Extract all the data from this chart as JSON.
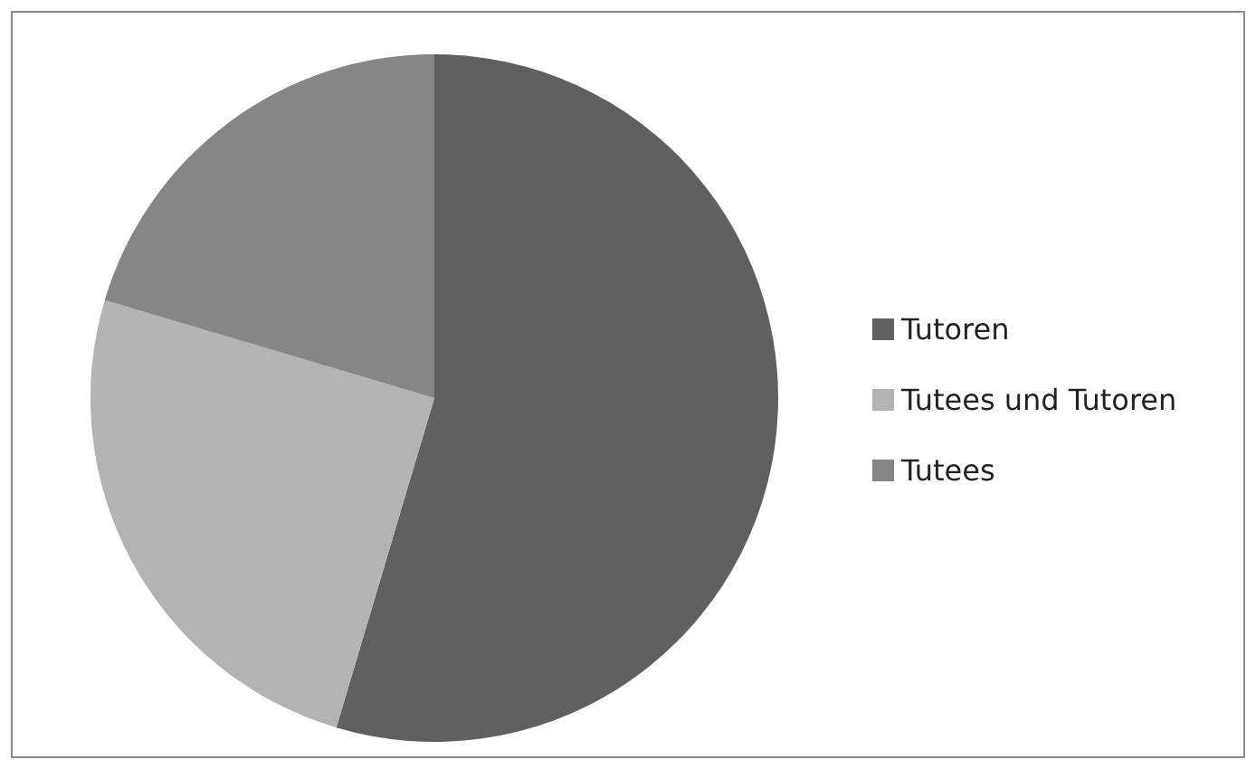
{
  "chart_data": {
    "type": "pie",
    "categories": [
      "Tutoren",
      "Tutees und Tutoren",
      "Tutees"
    ],
    "values": [
      54.6,
      25,
      20.4
    ],
    "colors": [
      "#606060",
      "#b3b3b3",
      "#868686"
    ],
    "legend": "right"
  }
}
